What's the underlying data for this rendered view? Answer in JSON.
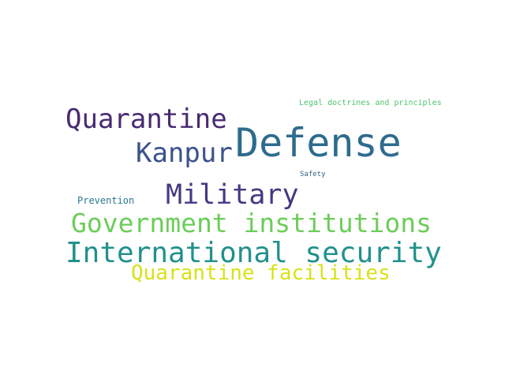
{
  "words": [
    {
      "text": "Defense",
      "color": "#2e6b8e"
    },
    {
      "text": "Quarantine",
      "color": "#482a73"
    },
    {
      "text": "Kanpur",
      "color": "#3b528b"
    },
    {
      "text": "Military",
      "color": "#443983"
    },
    {
      "text": "Government institutions",
      "color": "#6ccd5a"
    },
    {
      "text": "International security",
      "color": "#21918c"
    },
    {
      "text": "Quarantine facilities",
      "color": "#d8e219"
    },
    {
      "text": "Legal doctrines and principles",
      "color": "#4ec36b"
    },
    {
      "text": "Safety",
      "color": "#33638d"
    },
    {
      "text": "Prevention",
      "color": "#2a788e"
    }
  ]
}
